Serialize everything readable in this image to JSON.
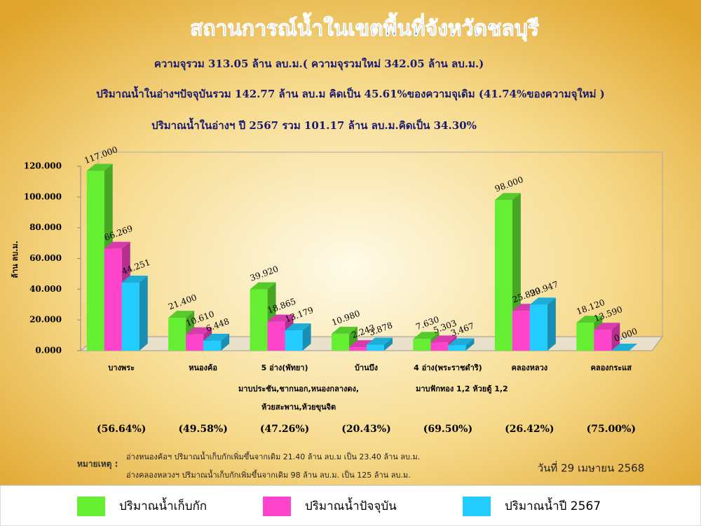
{
  "chart_data": {
    "type": "bar",
    "title": "สถานการณ์น้ำในเขตพื้นที่จังหวัดชลบุรี",
    "subtitle": [
      "ความจุรวม  313.05 ล้าน ลบ.ม.( ความจุรวมใหม่ 342.05 ล้าน ลบ.ม.)",
      "ปริมาณน้ำในอ่างฯปัจจุบันรวม 142.77 ล้าน ลบ.ม คิดเป็น 45.61%ของความจุเดิม (41.74%ของความจุใหม่ )",
      "ปริมาณน้ำในอ่างฯ ปี 2567 รวม 101.17 ล้าน ลบ.ม.คิดเป็น 34.30%"
    ],
    "ylabel": "ล้าน ลบ.ม.",
    "categories": [
      "บางพระ",
      "หนองค้อ",
      "5 อ่าง(พัทยา)",
      "บ้านบึง",
      "4 อ่าง(พระราชดำริ)",
      "คลองหลวง",
      "คลองกระแส"
    ],
    "category_details": [
      [],
      [],
      [
        "มาบประชัน,ชากนอก,หนองกลางดง,",
        "ห้วยสะพาน,ห้วยขุนจิต"
      ],
      [],
      [
        "มาบฟักทอง 1,2 ห้วยตู้ 1,2"
      ],
      [],
      []
    ],
    "category_percents": [
      "(56.64%)",
      "(49.58%)",
      "(47.26%)",
      "(20.43%)",
      "(69.50%)",
      "(26.42%)",
      "(75.00%)"
    ],
    "series": [
      {
        "name": "ปริมาณน้ำเก็บกัก",
        "color": "#66ee33",
        "values": [
          117,
          21.4,
          39.92,
          10.98,
          7.63,
          98,
          18.12
        ],
        "value_labels": [
          "117.000",
          "21.400",
          "39.920",
          "10.980",
          "7.630",
          "98.000",
          "18.120"
        ]
      },
      {
        "name": "ปริมาณน้ำปัจจุบัน",
        "color": "#ff44cc",
        "values": [
          66.269,
          10.61,
          18.865,
          2.243,
          5.303,
          25.89,
          13.59
        ],
        "value_labels": [
          "66.269",
          "10.610",
          "18.865",
          "2.243",
          "5.303",
          "25.890",
          "13.590"
        ]
      },
      {
        "name": "ปริมาณน้ำปี 2567",
        "color": "#22ccff",
        "values": [
          44.251,
          6.448,
          13.179,
          3.878,
          3.467,
          29.947,
          0
        ],
        "value_labels": [
          "44.251",
          "6.448",
          "13.179",
          "3.878",
          "3.467",
          "29.947",
          "0.000"
        ]
      }
    ],
    "ylim": [
      0,
      120
    ],
    "yticks": [
      {
        "value": 0,
        "label": "0.000"
      },
      {
        "value": 20,
        "label": "20.000"
      },
      {
        "value": 40,
        "label": "40.000"
      },
      {
        "value": 60,
        "label": "60.000"
      },
      {
        "value": 80,
        "label": "80.000"
      },
      {
        "value": 100,
        "label": "100.000"
      },
      {
        "value": 120,
        "label": "120.000"
      }
    ],
    "grid": false,
    "notes": {
      "label": "หมายเหตุ :",
      "lines": [
        "อ่างหนองค้อฯ ปริมาณน้ำเก็บกักเพิ่มขึ้นจากเดิม 21.40 ล้าน ลบ.ม เป็น 23.40 ล้าน ลบ.ม.",
        "อ่างคลองหลวงฯ ปริมาณน้ำเก็บกักเพิ่มขึ้นจากเดิม 98 ล้าน ลบ.ม. เป็น 125 ล้าน ลบ.ม."
      ]
    },
    "date": "วันที่ 29 เมษายน 2568"
  }
}
